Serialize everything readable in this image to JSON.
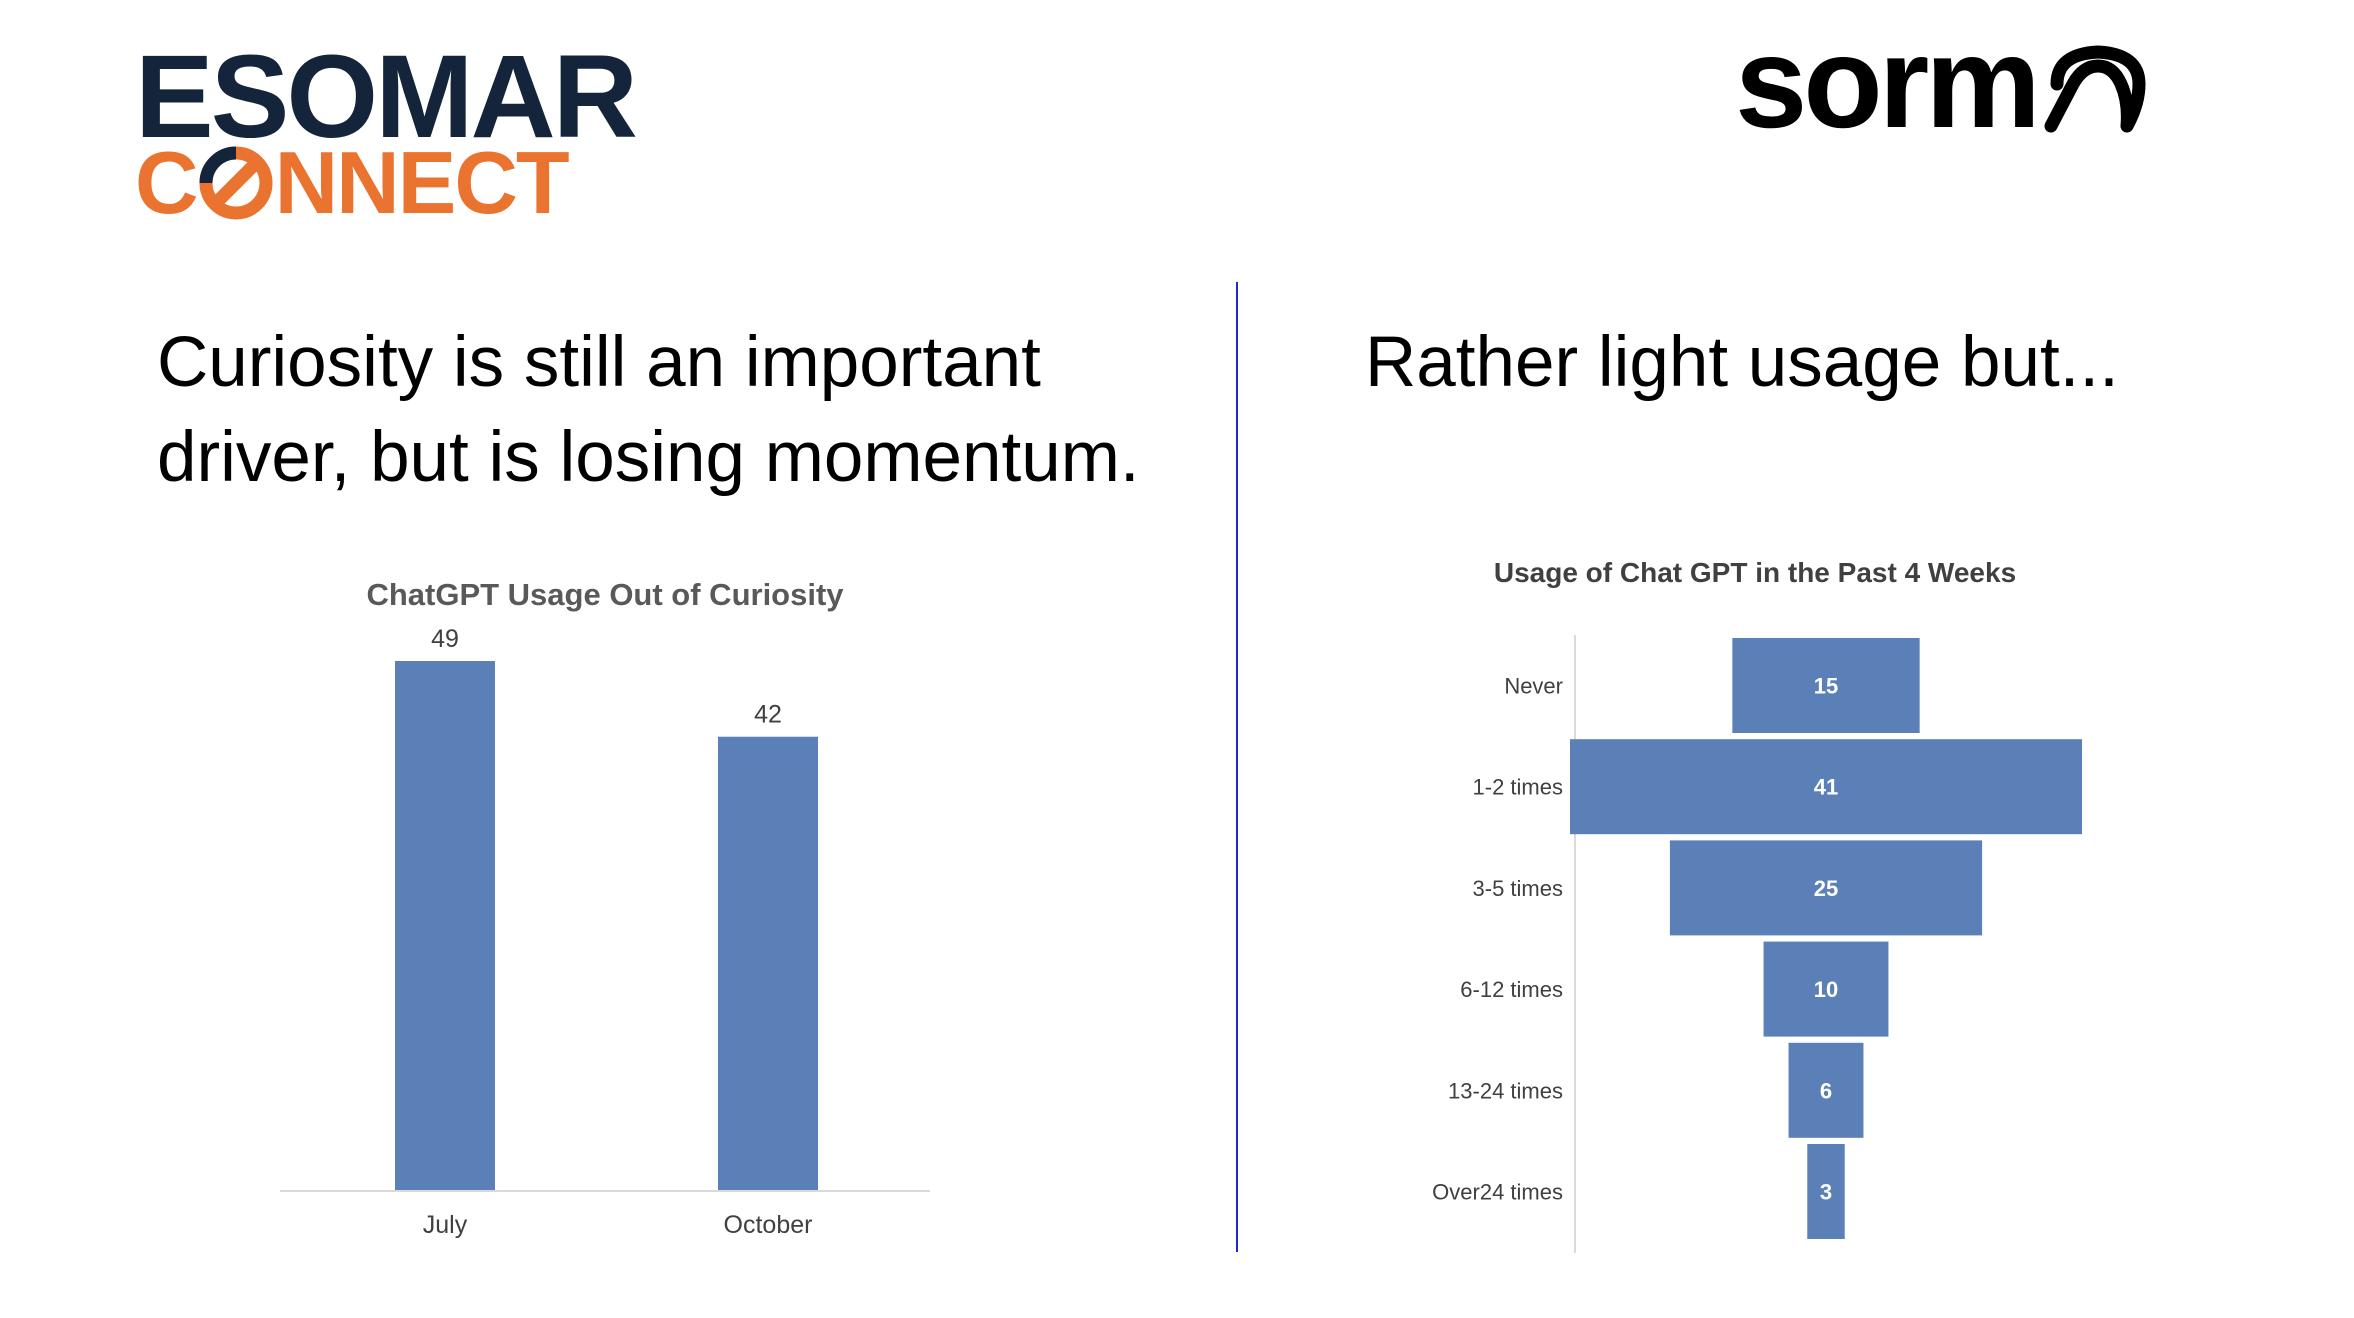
{
  "logos": {
    "esomar": {
      "line1": "ESOMAR",
      "line2_prefix": "C",
      "line2_suffix": "NNECT",
      "color_dark": "#14253b",
      "color_orange": "#ea7330"
    },
    "sorma": {
      "text": "sorm"
    }
  },
  "left_headline": {
    "line1": "Curiosity is still an important",
    "line2": "driver, but is losing momentum."
  },
  "right_headline": {
    "line1": "Rather light usage but..."
  },
  "colors": {
    "bar": "#5b80b8",
    "divider": "#1f2ac4",
    "axis": "#d9d9d9",
    "label": "#404040",
    "title": "#595959"
  },
  "chart_data": [
    {
      "type": "bar",
      "title": "ChatGPT Usage  Out of Curiosity",
      "categories": [
        "July",
        "October"
      ],
      "values": [
        49,
        42
      ],
      "data_labels": true,
      "ylim": [
        0,
        49
      ],
      "grid": false,
      "xlabel": "",
      "ylabel": ""
    },
    {
      "type": "bar",
      "orientation": "horizontal-funnel",
      "title": "Usage of Chat GPT in the Past 4 Weeks",
      "categories": [
        "Never",
        "1-2 times",
        "3-5 times",
        "6-12 times",
        "13-24 times",
        "Over24 times"
      ],
      "values": [
        15,
        41,
        25,
        10,
        6,
        3
      ],
      "data_labels": true,
      "grid": false,
      "xlabel": "",
      "ylabel": ""
    }
  ]
}
